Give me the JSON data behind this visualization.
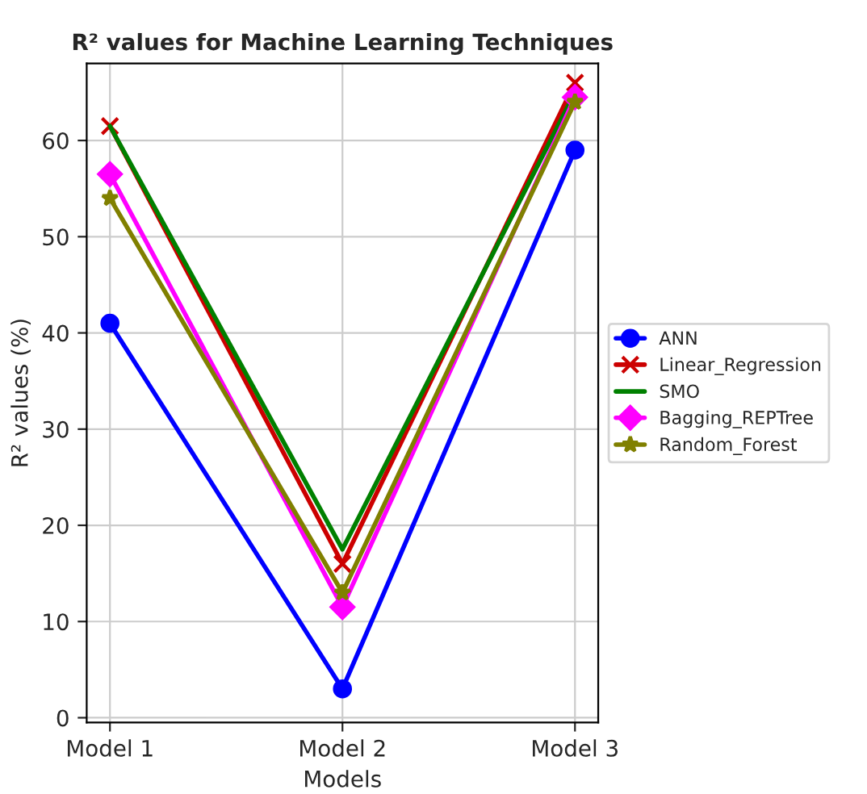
{
  "chart_data": {
    "type": "line",
    "title": "R² values for Machine Learning Techniques",
    "xlabel": "Models",
    "ylabel": "R² values (%)",
    "categories": [
      "Model 1",
      "Model 2",
      "Model 3"
    ],
    "series": [
      {
        "name": "ANN",
        "color": "#0000ff",
        "marker": "circle",
        "values": [
          41,
          3,
          59
        ]
      },
      {
        "name": "Linear_Regression",
        "color": "#cc0000",
        "marker": "cross",
        "values": [
          61.5,
          16,
          66
        ]
      },
      {
        "name": "SMO",
        "color": "#008000",
        "marker": "none",
        "values": [
          61.5,
          17.5,
          65
        ]
      },
      {
        "name": "Bagging_REPTree",
        "color": "#ff00ff",
        "marker": "diamond",
        "values": [
          56.5,
          11.5,
          64.5
        ]
      },
      {
        "name": "Random_Forest",
        "color": "#808000",
        "marker": "star",
        "values": [
          54,
          13,
          64
        ]
      }
    ],
    "ylim": [
      -0.5,
      68
    ],
    "yticks": [
      0,
      10,
      20,
      30,
      40,
      50,
      60
    ],
    "grid": true,
    "legend": "right",
    "line_style": "solid"
  }
}
